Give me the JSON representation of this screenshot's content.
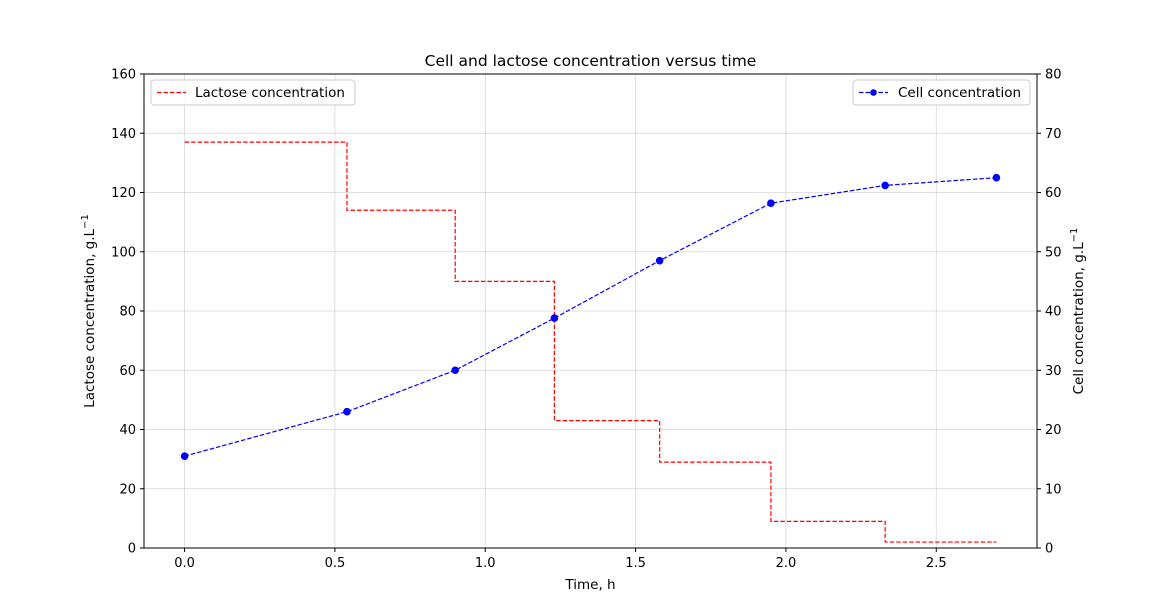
{
  "chart_data": {
    "type": "line",
    "title": "Cell and lactose concentration versus time",
    "xlabel": "Time, h",
    "ylabel_left": "Lactose concentration, g.L",
    "ylabel_right": "Cell concentration, g.L",
    "ylabel_superscript": "−1",
    "xlim": [
      -0.135,
      2.835
    ],
    "ylim_left": [
      0,
      160
    ],
    "ylim_right": [
      0,
      80
    ],
    "x_ticks": [
      0.0,
      0.5,
      1.0,
      1.5,
      2.0,
      2.5
    ],
    "x_tick_labels": [
      "0.0",
      "0.5",
      "1.0",
      "1.5",
      "2.0",
      "2.5"
    ],
    "y_left_ticks": [
      0,
      20,
      40,
      60,
      80,
      100,
      120,
      140,
      160
    ],
    "y_left_tick_labels": [
      "0",
      "20",
      "40",
      "60",
      "80",
      "100",
      "120",
      "140",
      "160"
    ],
    "y_right_ticks": [
      0,
      10,
      20,
      30,
      40,
      50,
      60,
      70,
      80
    ],
    "y_right_tick_labels": [
      "0",
      "10",
      "20",
      "30",
      "40",
      "50",
      "60",
      "70",
      "80"
    ],
    "grid": true,
    "series": [
      {
        "name": "Lactose concentration",
        "axis": "left",
        "style": "step-post dashed",
        "color": "#ff0000",
        "x": [
          0.0,
          0.54,
          0.9,
          1.23,
          1.58,
          1.95,
          2.33,
          2.7
        ],
        "y": [
          137,
          114,
          90,
          43,
          29,
          9,
          2,
          2
        ],
        "legend_position": "upper-left"
      },
      {
        "name": "Cell concentration",
        "axis": "right",
        "style": "dashed with circle markers",
        "color": "#0000ff",
        "x": [
          0.0,
          0.54,
          0.9,
          1.23,
          1.58,
          1.95,
          2.33,
          2.7
        ],
        "y": [
          15.5,
          23.0,
          30.0,
          38.8,
          48.5,
          58.2,
          61.2,
          62.5
        ],
        "legend_position": "upper-right"
      }
    ]
  }
}
